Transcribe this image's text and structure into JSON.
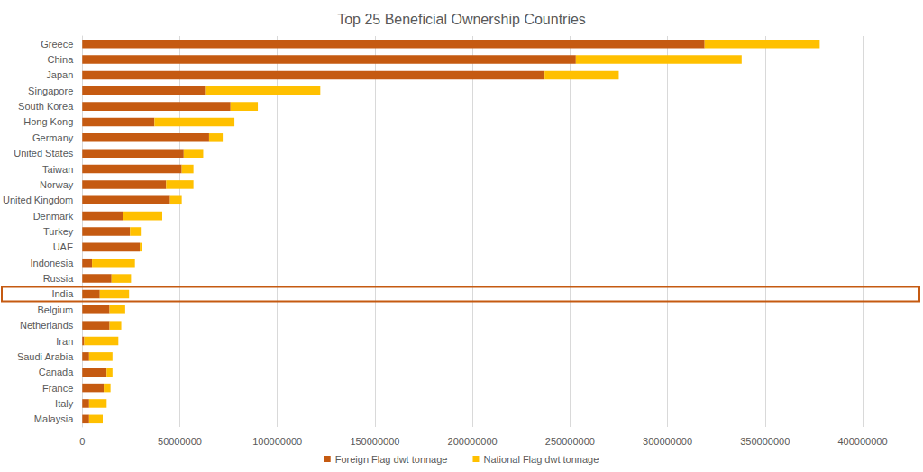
{
  "chart_data": {
    "type": "bar",
    "title": "Top 25 Beneficial Ownership Countries",
    "orientation": "horizontal",
    "stacked": true,
    "grid": true,
    "legend": "bottom",
    "categories": [
      "Greece",
      "China",
      "Japan",
      "Singapore",
      "South Korea",
      "Hong Kong",
      "Germany",
      "United States",
      "Taiwan",
      "Norway",
      "United Kingdom",
      "Denmark",
      "Turkey",
      "UAE",
      "Indonesia",
      "Russia",
      "India",
      "Belgium",
      "Netherlands",
      "Iran",
      "Saudi Arabia",
      "Canada",
      "France",
      "Italy",
      "Malaysia"
    ],
    "series": [
      {
        "name": "Foreign Flag dwt tonnage",
        "color": "#C55A11",
        "values": [
          319000000,
          253000000,
          237000000,
          63000000,
          76000000,
          37000000,
          65000000,
          52000000,
          51000000,
          43000000,
          45000000,
          21000000,
          24500000,
          29500000,
          5000000,
          15000000,
          9000000,
          14000000,
          14000000,
          1000000,
          3500000,
          12500000,
          11000000,
          3500000,
          3500000
        ]
      },
      {
        "name": "National Flag dwt tonnage",
        "color": "#FFC000",
        "values": [
          59000000,
          85000000,
          38000000,
          59000000,
          14000000,
          41000000,
          7000000,
          10000000,
          6000000,
          14000000,
          6000000,
          20000000,
          5500000,
          1000000,
          22000000,
          10000000,
          15000000,
          8000000,
          6000000,
          17500000,
          12000000,
          3000000,
          3500000,
          9000000,
          7000000
        ]
      }
    ],
    "xlim": [
      0,
      400000000
    ],
    "xticks": [
      0,
      50000000,
      100000000,
      150000000,
      200000000,
      250000000,
      300000000,
      350000000,
      400000000
    ]
  }
}
